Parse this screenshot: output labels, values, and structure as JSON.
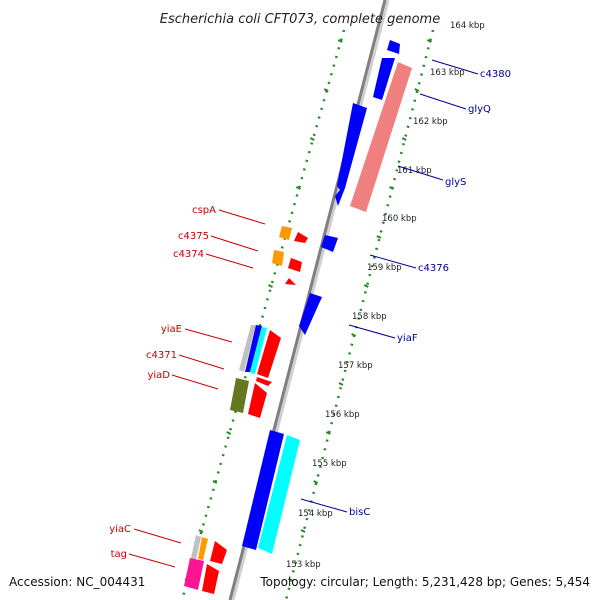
{
  "title": "Escherichia coli CFT073, complete genome",
  "accession": "Accession: NC_004431",
  "topology": "Topology: circular; Length: 5,231,428 bp; Genes: 5,454",
  "kbp_labels": [
    "164 kbp",
    "163 kbp",
    "162 kbp",
    "161 kbp",
    "160 kbp",
    "159 kbp",
    "158 kbp",
    "157 kbp",
    "156 kbp",
    "155 kbp",
    "154 kbp",
    "153 kbp"
  ],
  "gene_labels_left": [
    "cspA",
    "c4375",
    "c4374",
    "yiaE",
    "c4371",
    "yiaD",
    "yiaC",
    "tag"
  ],
  "gene_labels_right": [
    "c4380",
    "glyQ",
    "glyS",
    "c4376",
    "yiaF",
    "bisC"
  ],
  "colors": {
    "forward_label": "#cc0000",
    "reverse_label": "#000099",
    "red": "#ff0000",
    "blue": "#0000ff",
    "cyan": "#00ffff",
    "salmon": "#f08080",
    "orange": "#ff9900",
    "olive": "#667722",
    "magenta": "#ff1493",
    "gray": "#c0c0c0",
    "backbone": "#808080",
    "ticks": "#228b22"
  }
}
